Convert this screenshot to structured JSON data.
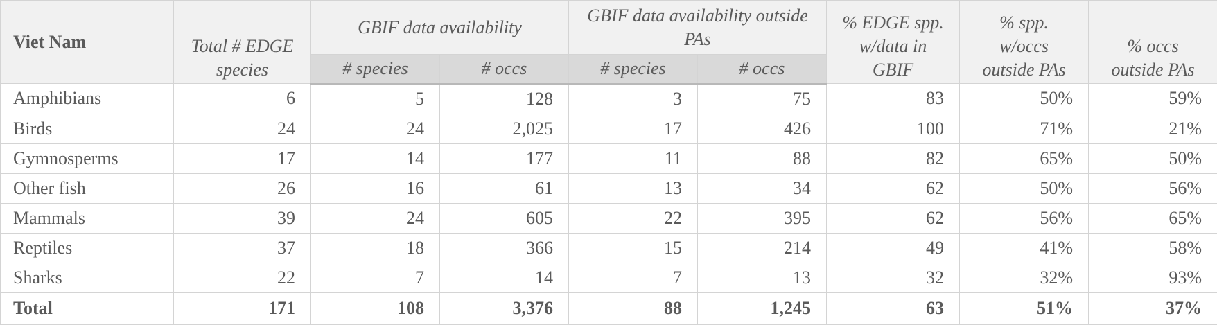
{
  "table": {
    "corner": "Viet Nam",
    "headers": {
      "total_species": "Total # EDGE species",
      "gbif_group": "GBIF data availability",
      "gbif_outside_group": "GBIF data availability outside PAs",
      "sub_species": "# species",
      "sub_occs": "# occs",
      "pct_edge": "% EDGE spp. w/data in GBIF",
      "pct_spp_outside": "% spp. w/occs outside PAs",
      "pct_occs_outside": "% occs outside PAs"
    },
    "rows": [
      [
        "Amphibians",
        "6",
        "5",
        "128",
        "3",
        "75",
        "83",
        "50%",
        "59%"
      ],
      [
        "Birds",
        "24",
        "24",
        "2,025",
        "17",
        "426",
        "100",
        "71%",
        "21%"
      ],
      [
        "Gymnosperms",
        "17",
        "14",
        "177",
        "11",
        "88",
        "82",
        "65%",
        "50%"
      ],
      [
        "Other fish",
        "26",
        "16",
        "61",
        "13",
        "34",
        "62",
        "50%",
        "56%"
      ],
      [
        "Mammals",
        "39",
        "24",
        "605",
        "22",
        "395",
        "62",
        "56%",
        "65%"
      ],
      [
        "Reptiles",
        "37",
        "18",
        "366",
        "15",
        "214",
        "49",
        "41%",
        "58%"
      ],
      [
        "Sharks",
        "22",
        "7",
        "14",
        "7",
        "13",
        "32",
        "32%",
        "93%"
      ]
    ],
    "total": [
      "Total",
      "171",
      "108",
      "3,376",
      "88",
      "1,245",
      "63",
      "51%",
      "37%"
    ]
  }
}
